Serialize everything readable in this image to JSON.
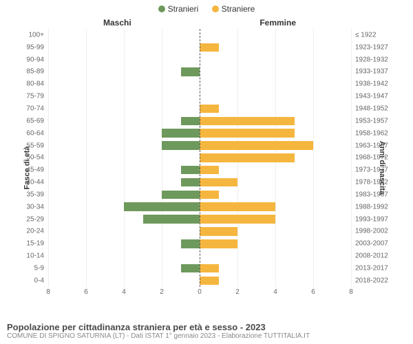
{
  "legend": {
    "male": {
      "label": "Stranieri",
      "color": "#6e995d"
    },
    "female": {
      "label": "Straniere",
      "color": "#f5b63f"
    }
  },
  "columns": {
    "male": "Maschi",
    "female": "Femmine"
  },
  "axis_titles": {
    "left": "Fasce di età",
    "right": "Anni di nascita"
  },
  "chart": {
    "type": "pyramid-bar",
    "xlim": 8,
    "xticks": [
      8,
      6,
      4,
      2,
      0,
      2,
      4,
      6,
      8
    ],
    "grid_color": "#eeeeee",
    "center_line_color": "#555555",
    "background_color": "#ffffff",
    "label_fontsize": 10,
    "rows": [
      {
        "age": "100+",
        "birth": "≤ 1922",
        "male": 0,
        "female": 0
      },
      {
        "age": "95-99",
        "birth": "1923-1927",
        "male": 0,
        "female": 1
      },
      {
        "age": "90-94",
        "birth": "1928-1932",
        "male": 0,
        "female": 0
      },
      {
        "age": "85-89",
        "birth": "1933-1937",
        "male": 1,
        "female": 0
      },
      {
        "age": "80-84",
        "birth": "1938-1942",
        "male": 0,
        "female": 0
      },
      {
        "age": "75-79",
        "birth": "1943-1947",
        "male": 0,
        "female": 0
      },
      {
        "age": "70-74",
        "birth": "1948-1952",
        "male": 0,
        "female": 1
      },
      {
        "age": "65-69",
        "birth": "1953-1957",
        "male": 1,
        "female": 5
      },
      {
        "age": "60-64",
        "birth": "1958-1962",
        "male": 2,
        "female": 5
      },
      {
        "age": "55-59",
        "birth": "1963-1967",
        "male": 2,
        "female": 6
      },
      {
        "age": "50-54",
        "birth": "1968-1972",
        "male": 0,
        "female": 5
      },
      {
        "age": "45-49",
        "birth": "1973-1977",
        "male": 1,
        "female": 1
      },
      {
        "age": "40-44",
        "birth": "1978-1982",
        "male": 1,
        "female": 2
      },
      {
        "age": "35-39",
        "birth": "1983-1987",
        "male": 2,
        "female": 1
      },
      {
        "age": "30-34",
        "birth": "1988-1992",
        "male": 4,
        "female": 4
      },
      {
        "age": "25-29",
        "birth": "1993-1997",
        "male": 3,
        "female": 4
      },
      {
        "age": "20-24",
        "birth": "1998-2002",
        "male": 0,
        "female": 2
      },
      {
        "age": "15-19",
        "birth": "2003-2007",
        "male": 1,
        "female": 2
      },
      {
        "age": "10-14",
        "birth": "2008-2012",
        "male": 0,
        "female": 0
      },
      {
        "age": "5-9",
        "birth": "2013-2017",
        "male": 1,
        "female": 1
      },
      {
        "age": "0-4",
        "birth": "2018-2022",
        "male": 0,
        "female": 1
      }
    ]
  },
  "footer": {
    "title": "Popolazione per cittadinanza straniera per età e sesso - 2023",
    "subtitle": "COMUNE DI SPIGNO SATURNIA (LT) - Dati ISTAT 1° gennaio 2023 - Elaborazione TUTTITALIA.IT"
  }
}
